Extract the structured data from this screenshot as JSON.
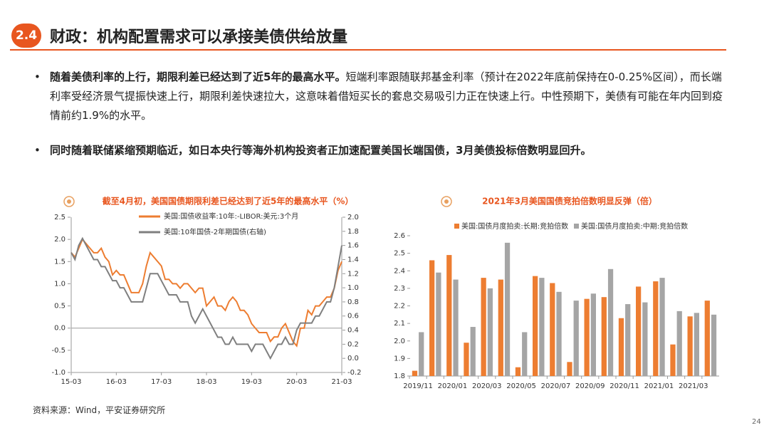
{
  "section": "2.4",
  "title": "财政：机构配置需求可以承接美债供给放量",
  "bullets": [
    {
      "bold": "随着美债利率的上行，期限利差已经达到了近5年的最高水平。",
      "text": "短端利率跟随联邦基金利率（预计在2022年底前保持在0-0.25%区间），而长端利率受经济景气提振快速上行，期限利差快速拉大，这意味着借短买长的套息交易吸引力正在快速上行。中性预期下，美债有可能在年内回到疫情前约1.9%的水平。"
    },
    {
      "bold": "同时随着联储紧缩预期临近，如日本央行等海外机构投资者正加速配置美国长端国债，3月美债投标倍数明显回升。",
      "text": ""
    }
  ],
  "source": "资料来源：Wind，平安证券研究所",
  "page": "24",
  "chart_data": [
    {
      "type": "line",
      "title": "截至4月初，美国国债期限利差已经达到了近5年的最高水平（%）",
      "x": [
        "15-03",
        "15-04",
        "15-05",
        "15-06",
        "15-07",
        "15-08",
        "15-09",
        "15-10",
        "15-11",
        "15-12",
        "16-01",
        "16-02",
        "16-03",
        "16-04",
        "16-05",
        "16-06",
        "16-07",
        "16-08",
        "16-09",
        "16-10",
        "16-11",
        "16-12",
        "17-01",
        "17-02",
        "17-03",
        "17-04",
        "17-05",
        "17-06",
        "17-07",
        "17-08",
        "17-09",
        "17-10",
        "17-11",
        "17-12",
        "18-01",
        "18-02",
        "18-03",
        "18-04",
        "18-05",
        "18-06",
        "18-07",
        "18-08",
        "18-09",
        "18-10",
        "18-11",
        "18-12",
        "19-01",
        "19-02",
        "19-03",
        "19-04",
        "19-05",
        "19-06",
        "19-07",
        "19-08",
        "19-09",
        "19-10",
        "19-11",
        "19-12",
        "20-01",
        "20-02",
        "20-03",
        "20-04",
        "20-05",
        "20-06",
        "20-07",
        "20-08",
        "20-09",
        "20-10",
        "20-11",
        "20-12",
        "21-01",
        "21-02",
        "21-03"
      ],
      "xticks": [
        "15-03",
        "16-03",
        "17-03",
        "18-03",
        "19-03",
        "20-03",
        "21-03"
      ],
      "series": [
        {
          "name": "美国:国债收益率:10年:-LIBOR:美元:3个月",
          "color": "#ED7D31",
          "values": [
            1.7,
            1.6,
            1.8,
            2.0,
            1.9,
            1.8,
            1.7,
            1.7,
            1.8,
            1.6,
            1.5,
            1.2,
            1.3,
            1.2,
            1.2,
            1.0,
            0.8,
            0.8,
            0.8,
            1.0,
            1.4,
            1.7,
            1.6,
            1.5,
            1.4,
            1.1,
            1.1,
            1.0,
            1.0,
            0.9,
            1.0,
            1.0,
            0.9,
            0.8,
            0.9,
            0.9,
            0.5,
            0.6,
            0.7,
            0.5,
            0.5,
            0.4,
            0.6,
            0.7,
            0.6,
            0.4,
            0.4,
            0.3,
            0.1,
            0.0,
            -0.1,
            -0.1,
            -0.1,
            -0.3,
            -0.2,
            -0.2,
            0.0,
            0.1,
            -0.1,
            -0.3,
            -0.4,
            0.0,
            0.0,
            0.4,
            0.3,
            0.5,
            0.5,
            0.6,
            0.7,
            0.7,
            0.9,
            1.3,
            1.5
          ]
        },
        {
          "name": "美国:10年国债-2年期国债(右轴)",
          "color": "#7F7F7F",
          "axis": "y2",
          "values": [
            1.5,
            1.4,
            1.6,
            1.7,
            1.6,
            1.5,
            1.4,
            1.4,
            1.3,
            1.3,
            1.2,
            1.1,
            1.1,
            1.0,
            1.0,
            0.9,
            0.8,
            0.8,
            0.8,
            0.8,
            1.0,
            1.2,
            1.2,
            1.2,
            1.1,
            1.0,
            0.9,
            0.9,
            0.9,
            0.8,
            0.8,
            0.8,
            0.6,
            0.5,
            0.6,
            0.7,
            0.6,
            0.5,
            0.4,
            0.3,
            0.3,
            0.2,
            0.2,
            0.3,
            0.2,
            0.2,
            0.2,
            0.2,
            0.1,
            0.2,
            0.2,
            0.2,
            0.1,
            0.0,
            0.1,
            0.2,
            0.2,
            0.3,
            0.2,
            0.2,
            0.4,
            0.5,
            0.5,
            0.5,
            0.5,
            0.6,
            0.6,
            0.7,
            0.8,
            0.8,
            1.0,
            1.3,
            1.6
          ]
        }
      ],
      "ylim": [
        -1.0,
        2.5
      ],
      "yticks": [
        {
          "value": -1.0,
          "label": "-1.0"
        },
        -0.5,
        {
          "value": 0.0,
          "label": "0.0"
        },
        0.5,
        {
          "value": 1.0,
          "label": "1.0"
        },
        1.5,
        {
          "value": 2.0,
          "label": "2.0"
        },
        2.5
      ],
      "y2lim": [
        -0.2,
        2.0
      ],
      "y2ticks": [
        -0.2,
        {
          "value": 0.0,
          "label": "0.0"
        },
        0.2,
        0.4,
        0.6,
        0.8,
        {
          "value": 1.0,
          "label": "1.0"
        },
        1.2,
        1.4,
        1.6,
        1.8,
        {
          "value": 2.0,
          "label": "2.0"
        }
      ]
    },
    {
      "type": "bar",
      "title": "2021年3月美国国债竞拍倍数明显反弹（倍）",
      "categories": [
        "2019/11",
        null,
        "2020/01",
        null,
        "2020/03",
        null,
        "2020/05",
        null,
        "2020/07",
        null,
        "2020/09",
        null,
        "2020/11",
        null,
        "2021/01",
        null,
        "2021/03",
        null
      ],
      "series": [
        {
          "name": "美国:国债月度拍卖:长期:竞拍倍数",
          "color": "#ED7D31",
          "values": [
            1.83,
            2.46,
            2.49,
            1.99,
            2.36,
            2.35,
            1.85,
            2.37,
            2.33,
            1.88,
            2.24,
            2.25,
            2.13,
            2.31,
            2.34,
            1.98,
            2.14,
            2.23
          ]
        },
        {
          "name": "美国:国债月度拍卖:中期:竞拍倍数",
          "color": "#A5A5A5",
          "values": [
            2.05,
            2.39,
            2.35,
            2.08,
            2.3,
            2.56,
            2.05,
            2.36,
            2.28,
            2.23,
            2.27,
            2.41,
            2.21,
            2.22,
            2.36,
            2.17,
            2.16,
            2.15
          ]
        }
      ],
      "ylim": [
        1.8,
        2.6
      ],
      "yticks": [
        1.8,
        1.9,
        {
          "value": 2.0,
          "label": "2.0"
        },
        2.1,
        2.2,
        2.3,
        2.4,
        2.5,
        2.6
      ]
    }
  ]
}
